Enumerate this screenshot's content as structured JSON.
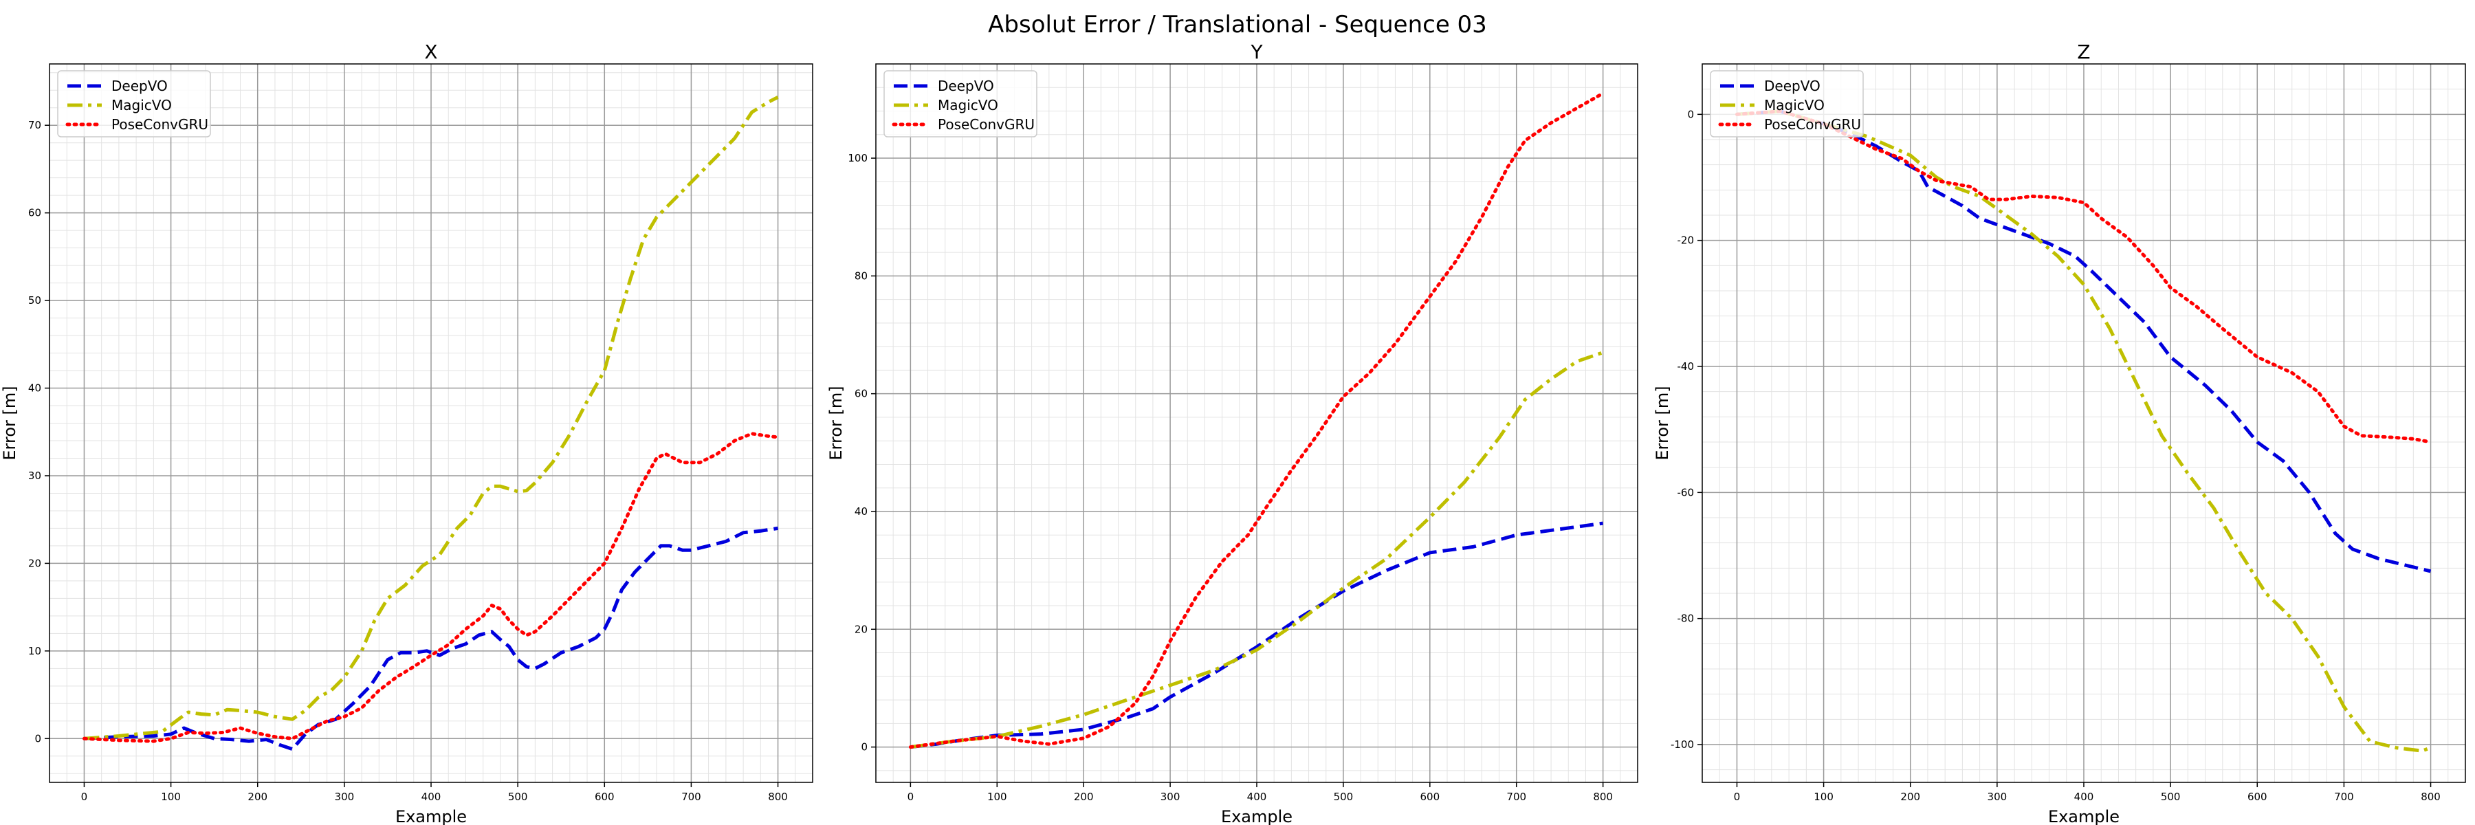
{
  "suptitle": "Absolut Error / Translational - Sequence 03",
  "chart_data": [
    {
      "type": "line",
      "title": "X",
      "xlabel": "Example",
      "ylabel": "Error [m]",
      "xlim": [
        -40,
        840
      ],
      "ylim": [
        -5,
        77
      ],
      "xticks": [
        0,
        100,
        200,
        300,
        400,
        500,
        600,
        700,
        800
      ],
      "yticks": [
        0,
        10,
        20,
        30,
        40,
        50,
        60,
        70
      ],
      "grid": true,
      "legend": "top-left",
      "series": [
        {
          "name": "DeepVO",
          "color": "#0000dd",
          "style": "dashed",
          "x": [
            0,
            40,
            80,
            100,
            115,
            130,
            150,
            170,
            190,
            210,
            225,
            240,
            255,
            270,
            290,
            310,
            330,
            350,
            365,
            380,
            395,
            410,
            425,
            440,
            455,
            470,
            480,
            490,
            500,
            510,
            520,
            530,
            550,
            570,
            590,
            600,
            610,
            620,
            635,
            650,
            665,
            675,
            690,
            700,
            720,
            740,
            760,
            780,
            800
          ],
          "y": [
            0,
            0.2,
            0.3,
            0.5,
            1.2,
            0.6,
            0,
            -0.1,
            -0.3,
            -0.1,
            -0.7,
            -1.2,
            0.5,
            1.6,
            2.2,
            4,
            6,
            9,
            9.8,
            9.8,
            10,
            9.5,
            10.3,
            10.8,
            11.8,
            12.2,
            11.3,
            10.5,
            9,
            8.2,
            8,
            8.5,
            9.8,
            10.5,
            11.5,
            12.5,
            14.5,
            17,
            19,
            20.5,
            22,
            22,
            21.5,
            21.5,
            22,
            22.5,
            23.5,
            23.7,
            24
          ]
        },
        {
          "name": "MagicVO",
          "color": "#bfbf00",
          "style": "dashdot",
          "x": [
            0,
            40,
            70,
            90,
            110,
            120,
            135,
            150,
            165,
            180,
            200,
            220,
            240,
            255,
            270,
            285,
            300,
            320,
            335,
            350,
            370,
            390,
            410,
            430,
            445,
            460,
            470,
            480,
            490,
            500,
            510,
            520,
            540,
            560,
            580,
            600,
            615,
            630,
            645,
            660,
            670,
            690,
            710,
            730,
            750,
            770,
            790,
            800
          ],
          "y": [
            0,
            0.3,
            0.6,
            0.8,
            2.3,
            3,
            2.8,
            2.7,
            3.3,
            3.2,
            3,
            2.5,
            2.2,
            3.2,
            4.7,
            5.5,
            7,
            10,
            13.5,
            16,
            17.5,
            19.7,
            21,
            24,
            25.5,
            28,
            28.8,
            28.8,
            28.5,
            28.2,
            28.3,
            29.2,
            31.5,
            34.7,
            38.5,
            42,
            47.5,
            52.5,
            57,
            59.5,
            60.5,
            62.5,
            64.5,
            66.5,
            68.5,
            71.5,
            72.7,
            73.2
          ]
        },
        {
          "name": "PoseConvGRU",
          "color": "#ff0000",
          "style": "dotted",
          "x": [
            0,
            40,
            80,
            100,
            120,
            140,
            160,
            180,
            200,
            220,
            240,
            260,
            280,
            300,
            320,
            340,
            360,
            380,
            400,
            420,
            440,
            460,
            470,
            480,
            490,
            500,
            510,
            520,
            540,
            560,
            580,
            600,
            620,
            640,
            660,
            670,
            690,
            710,
            730,
            750,
            770,
            790,
            800
          ],
          "y": [
            0,
            -0.2,
            -0.3,
            0,
            0.7,
            0.6,
            0.7,
            1.2,
            0.6,
            0.2,
            0,
            1,
            2,
            2.5,
            3.5,
            5.5,
            7,
            8.2,
            9.5,
            10.7,
            12.5,
            14,
            15.2,
            14.8,
            13.5,
            12.5,
            11.8,
            12.2,
            14,
            16,
            18,
            20,
            24,
            28.5,
            32,
            32.5,
            31.5,
            31.5,
            32.5,
            34,
            34.8,
            34.5,
            34.4
          ]
        }
      ]
    },
    {
      "type": "line",
      "title": "Y",
      "xlabel": "Example",
      "ylabel": "Error [m]",
      "xlim": [
        -40,
        840
      ],
      "ylim": [
        -6,
        116
      ],
      "xticks": [
        0,
        100,
        200,
        300,
        400,
        500,
        600,
        700,
        800
      ],
      "yticks": [
        0,
        20,
        40,
        60,
        80,
        100
      ],
      "grid": true,
      "legend": "top-left",
      "series": [
        {
          "name": "DeepVO",
          "color": "#0000dd",
          "style": "dashed",
          "x": [
            0,
            30,
            60,
            100,
            150,
            200,
            250,
            280,
            300,
            350,
            400,
            450,
            500,
            550,
            600,
            650,
            700,
            750,
            800
          ],
          "y": [
            0,
            0.5,
            1.2,
            2,
            2.2,
            3,
            5,
            6.5,
            8.5,
            12.5,
            17,
            22,
            26.5,
            30,
            33,
            34,
            36,
            37,
            38
          ]
        },
        {
          "name": "MagicVO",
          "color": "#bfbf00",
          "style": "dashdot",
          "x": [
            0,
            50,
            100,
            150,
            200,
            250,
            300,
            350,
            400,
            450,
            500,
            550,
            600,
            640,
            680,
            710,
            740,
            770,
            800
          ],
          "y": [
            0,
            1,
            1.8,
            3.5,
            5.5,
            8,
            10.5,
            13,
            16.5,
            21.5,
            27,
            32,
            39,
            45,
            52.5,
            59,
            62.5,
            65.5,
            67
          ]
        },
        {
          "name": "PoseConvGRU",
          "color": "#ff0000",
          "style": "dotted",
          "x": [
            0,
            50,
            100,
            130,
            160,
            200,
            230,
            260,
            280,
            300,
            330,
            360,
            390,
            410,
            440,
            470,
            500,
            530,
            560,
            600,
            630,
            660,
            690,
            710,
            740,
            770,
            800
          ],
          "y": [
            0,
            1,
            1.8,
            1,
            0.5,
            1.5,
            3.5,
            7.5,
            12,
            18,
            25.5,
            31.5,
            36,
            40.5,
            47,
            53,
            59.5,
            63.5,
            68.5,
            76.5,
            82.5,
            90,
            98.5,
            103,
            106,
            108.5,
            111
          ]
        }
      ]
    },
    {
      "type": "line",
      "title": "Z",
      "xlabel": "Example",
      "ylabel": "Error [m]",
      "xlim": [
        -40,
        840
      ],
      "ylim": [
        -106,
        8
      ],
      "xticks": [
        0,
        100,
        200,
        300,
        400,
        500,
        600,
        700,
        800
      ],
      "yticks": [
        0,
        -20,
        -40,
        -60,
        -80,
        -100
      ],
      "grid": true,
      "legend": "top-left",
      "series": [
        {
          "name": "DeepVO",
          "color": "#0000dd",
          "style": "dashed",
          "x": [
            0,
            50,
            100,
            130,
            160,
            190,
            210,
            220,
            240,
            260,
            280,
            300,
            330,
            360,
            390,
            410,
            440,
            470,
            500,
            540,
            570,
            600,
            630,
            660,
            690,
            710,
            740,
            770,
            800
          ],
          "y": [
            0,
            0.5,
            -1.5,
            -3,
            -5,
            -7.5,
            -9,
            -11.5,
            -13,
            -14.5,
            -16.5,
            -17.5,
            -19,
            -20.5,
            -22.5,
            -25,
            -29,
            -33,
            -38.5,
            -43,
            -47,
            -52,
            -55,
            -60,
            -66.5,
            -69,
            -70.5,
            -71.5,
            -72.5
          ]
        },
        {
          "name": "MagicVO",
          "color": "#bfbf00",
          "style": "dashdot",
          "x": [
            0,
            50,
            100,
            150,
            200,
            230,
            250,
            280,
            310,
            340,
            370,
            400,
            430,
            460,
            490,
            520,
            550,
            580,
            610,
            640,
            670,
            700,
            730,
            760,
            790,
            800
          ],
          "y": [
            0,
            0.5,
            -1.5,
            -3.5,
            -6.5,
            -10,
            -11.5,
            -13,
            -16,
            -19,
            -22.5,
            -27,
            -34,
            -42.5,
            -51,
            -57,
            -62.5,
            -69.5,
            -76,
            -80,
            -86,
            -94,
            -99.5,
            -100.5,
            -101,
            -100.5
          ]
        },
        {
          "name": "PoseConvGRU",
          "color": "#ff0000",
          "style": "dotted",
          "x": [
            0,
            50,
            100,
            130,
            160,
            190,
            210,
            230,
            250,
            270,
            290,
            310,
            340,
            370,
            400,
            420,
            450,
            480,
            500,
            530,
            560,
            600,
            640,
            670,
            700,
            720,
            750,
            780,
            800
          ],
          "y": [
            0,
            0.5,
            -1.5,
            -3.5,
            -5.5,
            -7,
            -9,
            -10.5,
            -11,
            -11.5,
            -13.5,
            -13.5,
            -13,
            -13.2,
            -14,
            -16.5,
            -19.5,
            -24,
            -27.5,
            -30.5,
            -34,
            -38.5,
            -41,
            -44,
            -49.5,
            -51,
            -51.2,
            -51.5,
            -52
          ]
        }
      ]
    }
  ]
}
